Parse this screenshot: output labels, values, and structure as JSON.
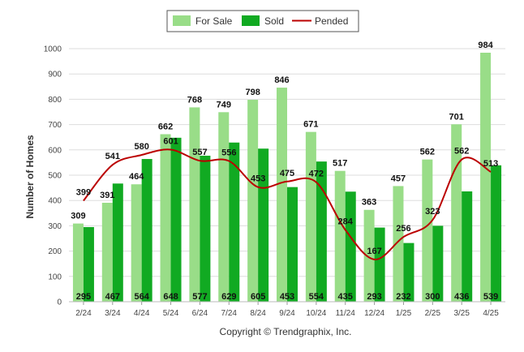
{
  "chart_data": {
    "type": "bar",
    "categories": [
      "2/24",
      "3/24",
      "4/24",
      "5/24",
      "6/24",
      "7/24",
      "8/24",
      "9/24",
      "10/24",
      "11/24",
      "12/24",
      "1/25",
      "2/25",
      "3/25",
      "4/25"
    ],
    "series": [
      {
        "name": "For Sale",
        "type": "bar",
        "color": "#99dd88",
        "values": [
          309,
          391,
          464,
          662,
          768,
          749,
          798,
          846,
          671,
          517,
          363,
          457,
          562,
          701,
          984
        ]
      },
      {
        "name": "Sold",
        "type": "bar",
        "color": "#11aa22",
        "values": [
          295,
          467,
          564,
          648,
          577,
          629,
          605,
          453,
          554,
          435,
          293,
          232,
          300,
          436,
          539
        ]
      },
      {
        "name": "Pended",
        "type": "line",
        "color": "#bb0000",
        "values": [
          399,
          541,
          580,
          601,
          557,
          556,
          453,
          475,
          472,
          284,
          167,
          256,
          323,
          562,
          513
        ]
      }
    ],
    "ylabel": "Number of Homes",
    "xlabel": "",
    "ylim": [
      0,
      1000
    ],
    "yticks": [
      0,
      100,
      200,
      300,
      400,
      500,
      600,
      700,
      800,
      900,
      1000
    ],
    "grid": true,
    "legend_position": "top-center",
    "footer": "Copyright © Trendgraphix, Inc."
  }
}
